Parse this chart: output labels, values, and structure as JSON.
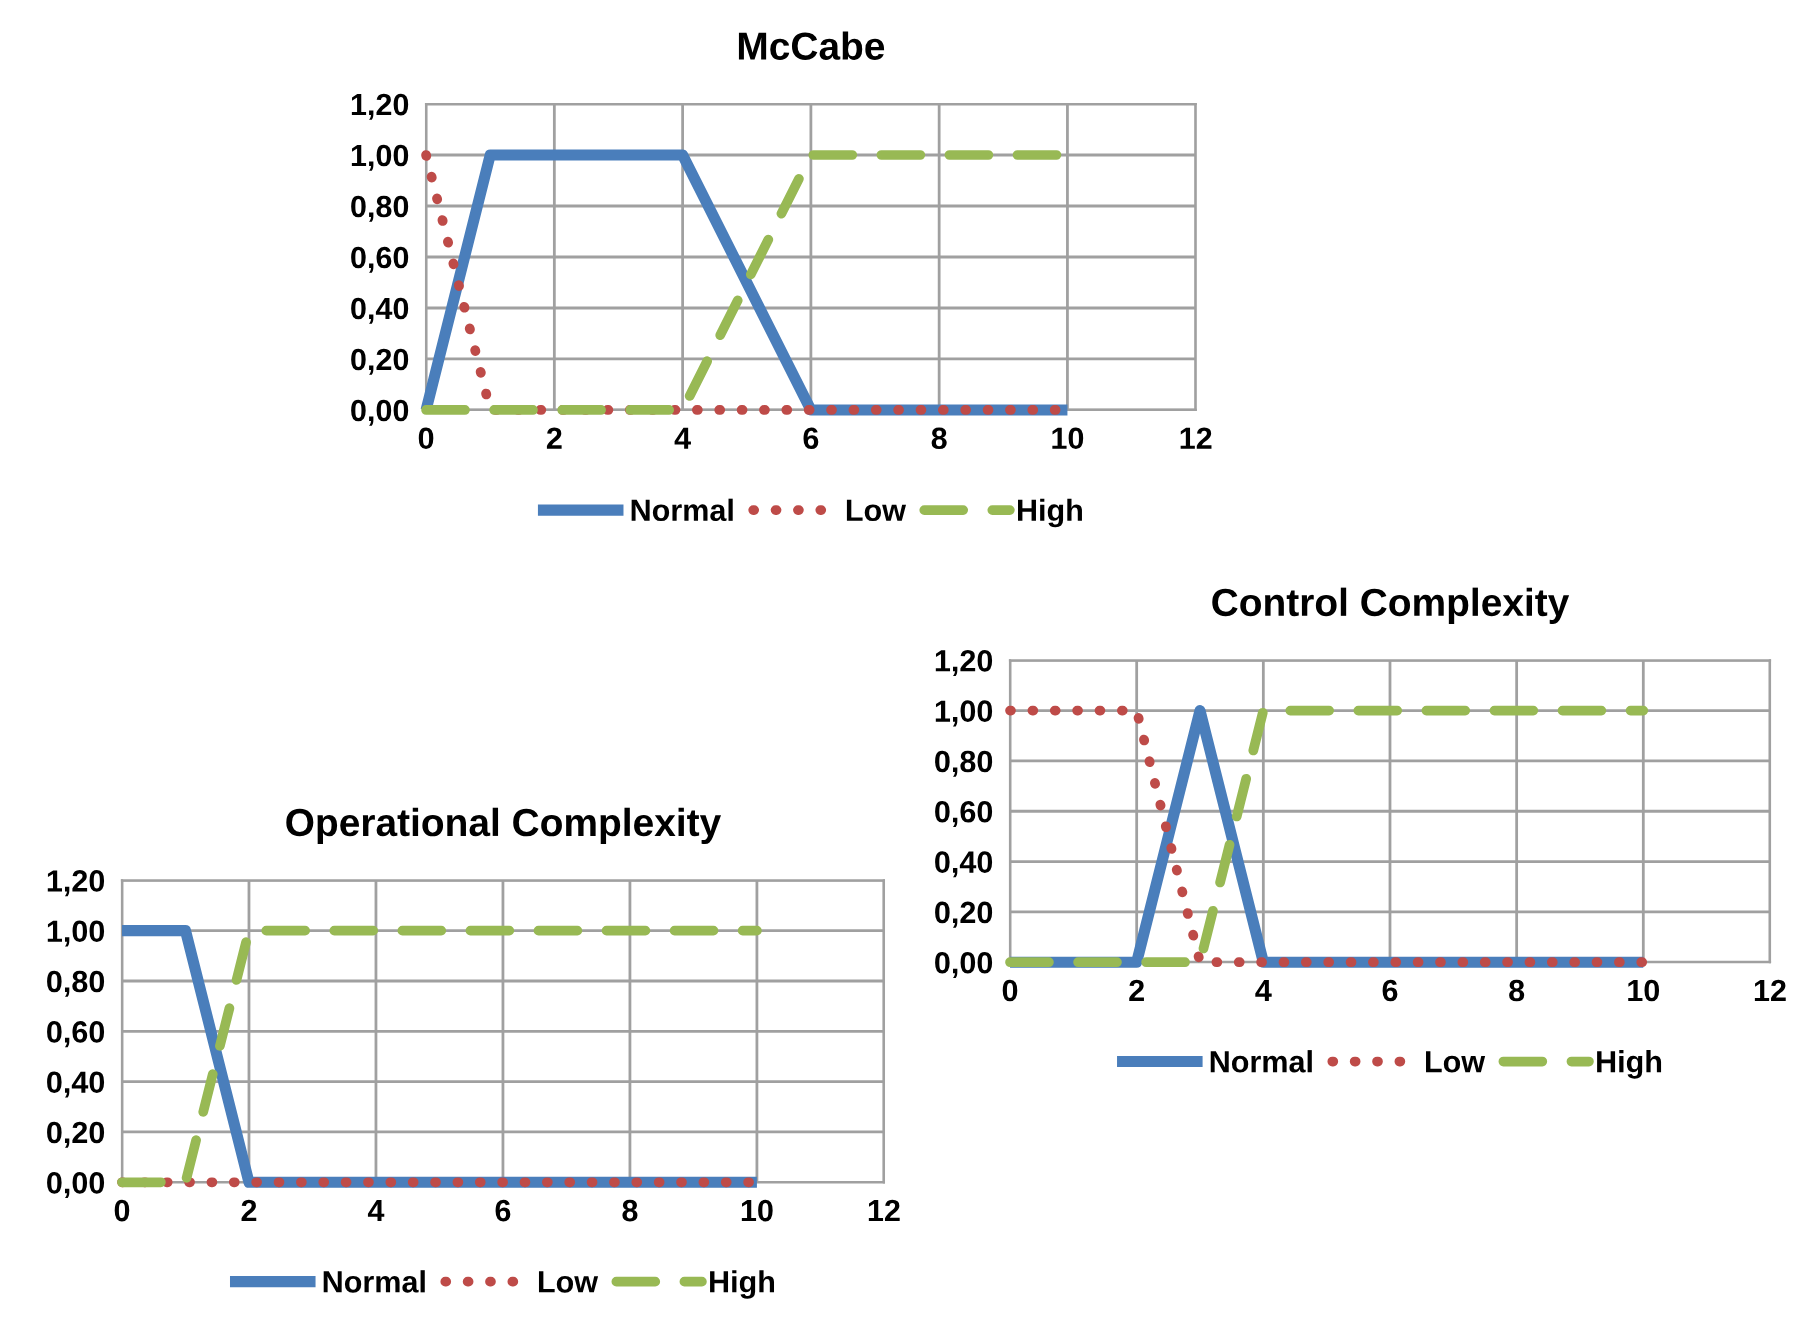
{
  "chart_data": [
    {
      "type": "line",
      "title": "McCabe",
      "xlim": [
        0,
        12
      ],
      "xticks": [
        0,
        2,
        4,
        6,
        8,
        10,
        12
      ],
      "ylim": [
        0,
        1.2
      ],
      "yticks": [
        {
          "value": 0,
          "label": "0,00"
        },
        {
          "value": 0.2,
          "label": "0,20"
        },
        {
          "value": 0.4,
          "label": "0,40"
        },
        {
          "value": 0.6,
          "label": "0,60"
        },
        {
          "value": 0.8,
          "label": "0,80"
        },
        {
          "value": 1,
          "label": "1,00"
        },
        {
          "value": 1.2,
          "label": "1,20"
        }
      ],
      "grid": true,
      "legend": "bottom",
      "marker": "none",
      "series": [
        {
          "name": "Normal",
          "color": "#4a7ebb",
          "line_style": "solid",
          "x": [
            0,
            1,
            4,
            6,
            10
          ],
          "values": [
            0,
            1,
            1,
            0,
            0
          ]
        },
        {
          "name": "Low",
          "color": "#be4b48",
          "line_style": "dotted",
          "x": [
            0,
            1,
            10
          ],
          "values": [
            1,
            0,
            0
          ]
        },
        {
          "name": "High",
          "color": "#98b954",
          "line_style": "dashed",
          "x": [
            0,
            4,
            6,
            10
          ],
          "values": [
            0,
            0,
            1,
            1
          ]
        }
      ]
    },
    {
      "type": "line",
      "title": "Control Complexity",
      "xlim": [
        0,
        12
      ],
      "xticks": [
        0,
        2,
        4,
        6,
        8,
        10,
        12
      ],
      "ylim": [
        0,
        1.2
      ],
      "yticks": [
        {
          "value": 0,
          "label": "0,00"
        },
        {
          "value": 0.2,
          "label": "0,20"
        },
        {
          "value": 0.4,
          "label": "0,40"
        },
        {
          "value": 0.6,
          "label": "0,60"
        },
        {
          "value": 0.8,
          "label": "0,80"
        },
        {
          "value": 1,
          "label": "1,00"
        },
        {
          "value": 1.2,
          "label": "1,20"
        }
      ],
      "grid": true,
      "legend": "bottom",
      "marker": "none",
      "series": [
        {
          "name": "Normal",
          "color": "#4a7ebb",
          "line_style": "solid",
          "x": [
            0,
            2,
            3,
            4,
            10
          ],
          "values": [
            0,
            0,
            1,
            0,
            0
          ]
        },
        {
          "name": "Low",
          "color": "#be4b48",
          "line_style": "dotted",
          "x": [
            0,
            2,
            3,
            10
          ],
          "values": [
            1,
            1,
            0,
            0
          ]
        },
        {
          "name": "High",
          "color": "#98b954",
          "line_style": "dashed",
          "x": [
            0,
            3,
            4,
            10
          ],
          "values": [
            0,
            0,
            1,
            1
          ]
        }
      ]
    },
    {
      "type": "line",
      "title": "Operational Complexity",
      "xlim": [
        0,
        12
      ],
      "xticks": [
        0,
        2,
        4,
        6,
        8,
        10,
        12
      ],
      "ylim": [
        0,
        1.2
      ],
      "yticks": [
        {
          "value": 0,
          "label": "0,00"
        },
        {
          "value": 0.2,
          "label": "0,20"
        },
        {
          "value": 0.4,
          "label": "0,40"
        },
        {
          "value": 0.6,
          "label": "0,60"
        },
        {
          "value": 0.8,
          "label": "0,80"
        },
        {
          "value": 1,
          "label": "1,00"
        },
        {
          "value": 1.2,
          "label": "1,20"
        }
      ],
      "grid": true,
      "legend": "bottom",
      "marker": "none",
      "series": [
        {
          "name": "Normal",
          "color": "#4a7ebb",
          "line_style": "solid",
          "x": [
            0,
            1,
            2,
            10
          ],
          "values": [
            1,
            1,
            0,
            0
          ]
        },
        {
          "name": "Low",
          "color": "#be4b48",
          "line_style": "dotted",
          "x": [
            0,
            10
          ],
          "values": [
            0,
            0
          ]
        },
        {
          "name": "High",
          "color": "#98b954",
          "line_style": "dashed",
          "x": [
            0,
            1,
            2,
            10
          ],
          "values": [
            0,
            0,
            1,
            1
          ]
        }
      ]
    }
  ]
}
